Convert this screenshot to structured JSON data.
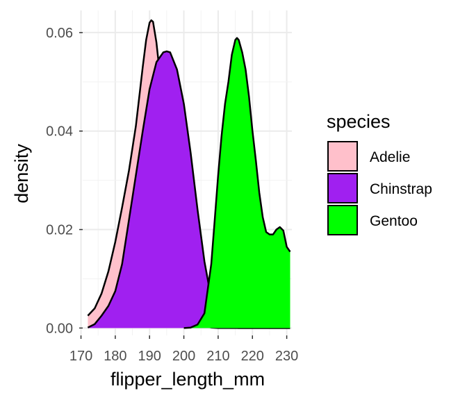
{
  "chart_data": {
    "type": "area",
    "title": "",
    "xlabel": "flipper_length_mm",
    "ylabel": "density",
    "xlim": [
      170.5,
      231.5
    ],
    "ylim": [
      -0.0015,
      0.0645
    ],
    "x_ticks": [
      170,
      180,
      190,
      200,
      210,
      220,
      230
    ],
    "x_tick_labels": [
      "170",
      "180",
      "190",
      "200",
      "210",
      "220",
      "230"
    ],
    "y_ticks": [
      0.0,
      0.02,
      0.04,
      0.06
    ],
    "y_tick_labels": [
      "0.00",
      "0.02",
      "0.04",
      "0.06"
    ],
    "grid": true,
    "legend_position": "right",
    "legend_title": "species",
    "series": [
      {
        "name": "Adelie",
        "color": "#FFC0CB",
        "points": [
          [
            172,
            0.0025
          ],
          [
            174,
            0.004
          ],
          [
            176,
            0.007
          ],
          [
            178,
            0.0115
          ],
          [
            180,
            0.0175
          ],
          [
            182,
            0.0245
          ],
          [
            184,
            0.032
          ],
          [
            186,
            0.041
          ],
          [
            188,
            0.053
          ],
          [
            189,
            0.0585
          ],
          [
            190,
            0.062
          ],
          [
            190.5,
            0.0625
          ],
          [
            191,
            0.0622
          ],
          [
            192,
            0.058
          ],
          [
            194,
            0.045
          ],
          [
            196,
            0.031
          ],
          [
            198,
            0.018
          ],
          [
            200,
            0.009
          ],
          [
            202,
            0.0035
          ],
          [
            204,
            0.001
          ],
          [
            206,
            0.0003
          ],
          [
            208,
            0.0001
          ],
          [
            210,
            0.0
          ],
          [
            231,
            0.0
          ]
        ]
      },
      {
        "name": "Chinstrap",
        "color": "#A020F0",
        "points": [
          [
            172,
            0.0001
          ],
          [
            174,
            0.0008
          ],
          [
            176,
            0.0025
          ],
          [
            178,
            0.0045
          ],
          [
            180,
            0.0075
          ],
          [
            182,
            0.013
          ],
          [
            184,
            0.022
          ],
          [
            186,
            0.031
          ],
          [
            188,
            0.04
          ],
          [
            190,
            0.0485
          ],
          [
            192,
            0.054
          ],
          [
            194,
            0.056
          ],
          [
            195,
            0.0562
          ],
          [
            196,
            0.056
          ],
          [
            198,
            0.0525
          ],
          [
            200,
            0.0455
          ],
          [
            202,
            0.0355
          ],
          [
            204,
            0.024
          ],
          [
            206,
            0.0135
          ],
          [
            208,
            0.006
          ],
          [
            210,
            0.002
          ],
          [
            212,
            0.0005
          ],
          [
            214,
            0.0001
          ],
          [
            216,
            0.0
          ],
          [
            231,
            0.0
          ]
        ]
      },
      {
        "name": "Gentoo",
        "color": "#00FF00",
        "points": [
          [
            200,
            0.0
          ],
          [
            202,
            0.0001
          ],
          [
            204,
            0.0007
          ],
          [
            206,
            0.003
          ],
          [
            208,
            0.013
          ],
          [
            209,
            0.022
          ],
          [
            210,
            0.031
          ],
          [
            211,
            0.039
          ],
          [
            212,
            0.0455
          ],
          [
            213,
            0.05
          ],
          [
            214,
            0.0555
          ],
          [
            215,
            0.0585
          ],
          [
            215.5,
            0.0589
          ],
          [
            216,
            0.0585
          ],
          [
            217,
            0.056
          ],
          [
            218,
            0.0525
          ],
          [
            219,
            0.047
          ],
          [
            220,
            0.04
          ],
          [
            221,
            0.034
          ],
          [
            222,
            0.0275
          ],
          [
            223,
            0.0225
          ],
          [
            224,
            0.0195
          ],
          [
            225,
            0.019
          ],
          [
            226,
            0.019
          ],
          [
            227,
            0.02
          ],
          [
            228,
            0.0205
          ],
          [
            229,
            0.0198
          ],
          [
            230,
            0.0165
          ],
          [
            231,
            0.0155
          ]
        ]
      }
    ]
  }
}
